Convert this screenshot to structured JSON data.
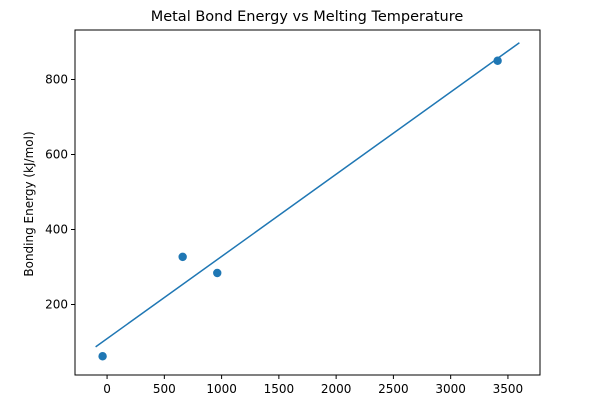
{
  "chart_data": {
    "type": "scatter",
    "title": "Metal Bond Energy vs Melting Temperature",
    "xlabel": "",
    "ylabel": "Bonding Energy (kJ/mol)",
    "xlim": [
      -280,
      3780
    ],
    "ylim": [
      12,
      932
    ],
    "xticks": [
      0,
      500,
      1000,
      1500,
      2000,
      2500,
      3000,
      3500
    ],
    "xtick_labels": [
      "0",
      "500",
      "1000",
      "1500",
      "2000",
      "2500",
      "3000",
      "3500"
    ],
    "yticks": [
      200,
      400,
      600,
      800
    ],
    "ytick_labels": [
      "200",
      "400",
      "600",
      "800"
    ],
    "grid": false,
    "series": [
      {
        "type": "scatter",
        "x": [
          -39,
          660,
          962,
          3410
        ],
        "y": [
          62,
          327,
          284,
          850
        ],
        "color": "#1f77b4"
      },
      {
        "type": "line",
        "x": [
          -100,
          3600
        ],
        "y": [
          87,
          898
        ],
        "color": "#1f77b4"
      }
    ]
  }
}
